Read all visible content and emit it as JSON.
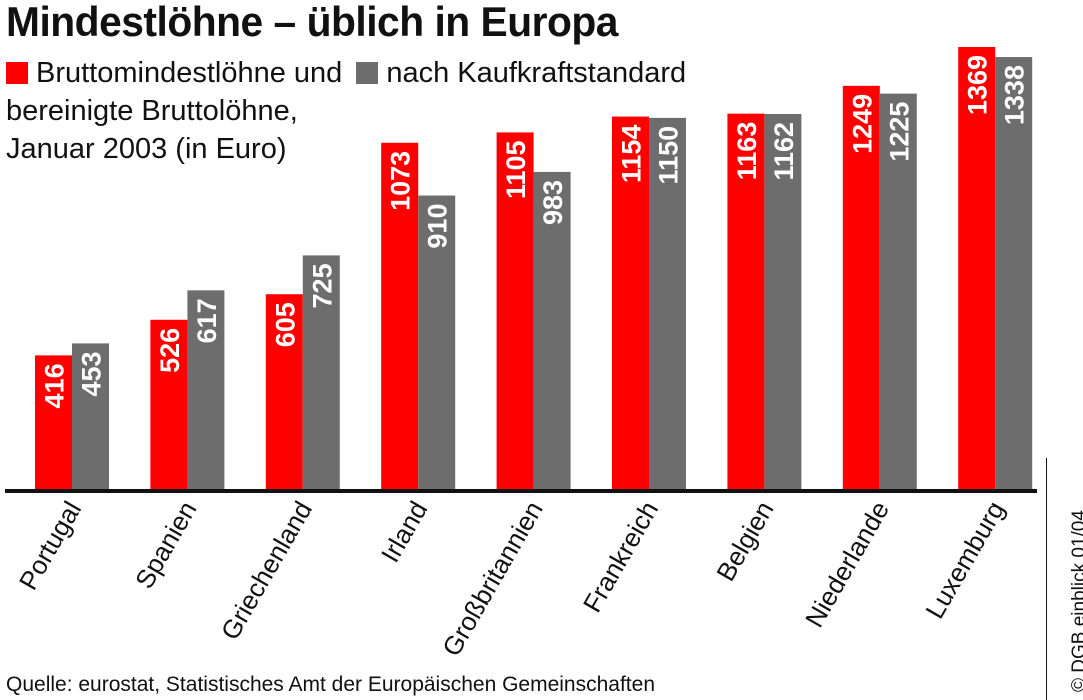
{
  "title": "Mindestlöhne – üblich in Europa",
  "legend": {
    "line1_a": "Bruttomindestlöhne und",
    "line1_b": "nach Kaufkraftstandard",
    "line2": "bereinigte Bruttolöhne,",
    "line3": "Januar 2003 (in Euro)"
  },
  "source": "Quelle: eurostat, Statistisches Amt der Europäischen Gemeinschaften",
  "copyright": "© DGB einblick 01/04",
  "colors": {
    "brutto": "#ff0000",
    "kaufkraft": "#6d6d6d",
    "axis": "#111111"
  },
  "chart_data": {
    "type": "bar",
    "categories": [
      "Portugal",
      "Spanien",
      "Griechenland",
      "Irland",
      "Großbritannien",
      "Frankreich",
      "Belgien",
      "Niederlande",
      "Luxemburg"
    ],
    "series": [
      {
        "name": "Bruttomindestlöhne",
        "values": [
          416,
          526,
          605,
          1073,
          1105,
          1154,
          1163,
          1249,
          1369
        ]
      },
      {
        "name": "nach Kaufkraftstandard bereinigte Bruttolöhne",
        "values": [
          453,
          617,
          725,
          910,
          983,
          1150,
          1162,
          1225,
          1338
        ]
      }
    ],
    "title": "Mindestlöhne – üblich in Europa",
    "xlabel": "",
    "ylabel": "",
    "ylim": [
      0,
      1375
    ],
    "grid": false,
    "legend_position": "top-left"
  }
}
